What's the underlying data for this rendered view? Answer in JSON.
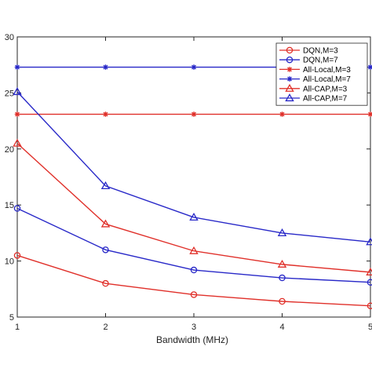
{
  "chart_data": {
    "type": "line",
    "title": "",
    "xlabel": "Bandwidth (MHz)",
    "ylabel": "",
    "x": [
      1,
      2,
      3,
      4,
      5
    ],
    "xlim": [
      1,
      5
    ],
    "ylim": [
      5,
      30
    ],
    "xticks": [
      "1",
      "2",
      "3",
      "4",
      "5"
    ],
    "yticks": [
      "5",
      "10",
      "15",
      "20",
      "25",
      "30"
    ],
    "grid": false,
    "legend_position": "top-right",
    "series": [
      {
        "name": "DQN,M=3",
        "color": "#e0302a",
        "marker": "circle",
        "values": [
          10.5,
          8.0,
          7.0,
          6.4,
          6.0
        ]
      },
      {
        "name": "DQN,M=7",
        "color": "#2828c8",
        "marker": "circle",
        "values": [
          14.7,
          11.0,
          9.2,
          8.5,
          8.1
        ]
      },
      {
        "name": "All-Local,M=3",
        "color": "#e0302a",
        "marker": "star",
        "values": [
          23.1,
          23.1,
          23.1,
          23.1,
          23.1
        ]
      },
      {
        "name": "All-Local,M=7",
        "color": "#2828c8",
        "marker": "star",
        "values": [
          27.3,
          27.3,
          27.3,
          27.3,
          27.3
        ]
      },
      {
        "name": "All-CAP,M=3",
        "color": "#e0302a",
        "marker": "triangle",
        "values": [
          20.5,
          13.3,
          10.9,
          9.7,
          9.0
        ]
      },
      {
        "name": "All-CAP,M=7",
        "color": "#2828c8",
        "marker": "triangle",
        "values": [
          25.1,
          16.7,
          13.9,
          12.5,
          11.7
        ]
      }
    ]
  }
}
